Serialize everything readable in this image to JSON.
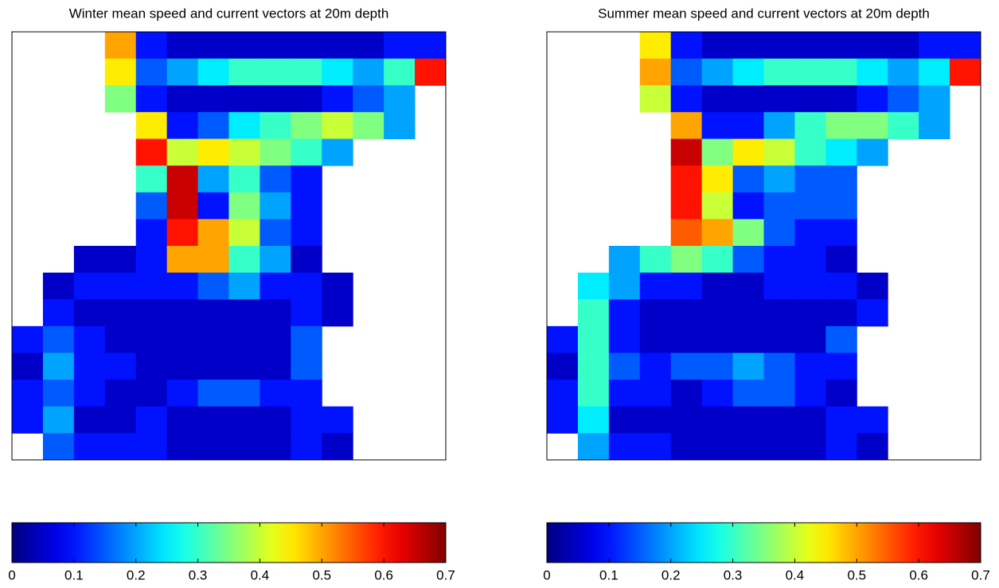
{
  "chart_data": [
    {
      "type": "heatmap",
      "title": "Winter mean speed and current vectors at 20m depth",
      "cmap": "jet",
      "clim": [
        0,
        0.7
      ],
      "colorbar_ticks": [
        0,
        0.1,
        0.2,
        0.3,
        0.4,
        0.5,
        0.6,
        0.7
      ],
      "values": [
        [
          null,
          null,
          null,
          0.5,
          0.1,
          0.05,
          0.05,
          0.05,
          0.05,
          0.05,
          0.05,
          0.05,
          0.1,
          0.1
        ],
        [
          null,
          null,
          null,
          0.45,
          0.15,
          0.2,
          0.25,
          0.3,
          0.3,
          0.3,
          0.25,
          0.2,
          0.3,
          0.6
        ],
        [
          null,
          null,
          null,
          0.35,
          0.1,
          0.05,
          0.05,
          0.05,
          0.05,
          0.05,
          0.1,
          0.15,
          0.2,
          null
        ],
        [
          null,
          null,
          null,
          null,
          0.45,
          0.1,
          0.15,
          0.25,
          0.3,
          0.35,
          0.4,
          0.35,
          0.2,
          null
        ],
        [
          null,
          null,
          null,
          null,
          0.6,
          0.4,
          0.45,
          0.4,
          0.35,
          0.3,
          0.2,
          null,
          null,
          null
        ],
        [
          null,
          null,
          null,
          null,
          0.3,
          0.65,
          0.2,
          0.3,
          0.15,
          0.1,
          null,
          null,
          null,
          null
        ],
        [
          null,
          null,
          null,
          null,
          0.15,
          0.65,
          0.1,
          0.35,
          0.2,
          0.1,
          null,
          null,
          null,
          null
        ],
        [
          null,
          null,
          null,
          null,
          0.1,
          0.6,
          0.5,
          0.4,
          0.15,
          0.1,
          null,
          null,
          null,
          null
        ],
        [
          null,
          null,
          0.05,
          0.05,
          0.1,
          0.5,
          0.5,
          0.3,
          0.2,
          0.05,
          null,
          null,
          null,
          null
        ],
        [
          null,
          0.05,
          0.1,
          0.1,
          0.1,
          0.1,
          0.15,
          0.2,
          0.1,
          0.1,
          0.05,
          null,
          null,
          null
        ],
        [
          null,
          0.1,
          0.05,
          0.05,
          0.05,
          0.05,
          0.05,
          0.05,
          0.05,
          0.1,
          0.05,
          null,
          null,
          null
        ],
        [
          0.1,
          0.15,
          0.1,
          0.05,
          0.05,
          0.05,
          0.05,
          0.05,
          0.05,
          0.15,
          null,
          null,
          null,
          null
        ],
        [
          0.05,
          0.2,
          0.1,
          0.1,
          0.05,
          0.05,
          0.05,
          0.05,
          0.05,
          0.15,
          null,
          null,
          null,
          null
        ],
        [
          0.1,
          0.15,
          0.1,
          0.05,
          0.05,
          0.1,
          0.15,
          0.15,
          0.1,
          0.1,
          null,
          null,
          null,
          null
        ],
        [
          0.1,
          0.2,
          0.05,
          0.05,
          0.1,
          0.05,
          0.05,
          0.05,
          0.05,
          0.1,
          0.1,
          null,
          null,
          null
        ],
        [
          null,
          0.15,
          0.1,
          0.1,
          0.1,
          0.05,
          0.05,
          0.05,
          0.05,
          0.1,
          0.05,
          null,
          null,
          null
        ]
      ]
    },
    {
      "type": "heatmap",
      "title": "Summer mean speed and current vectors at 20m depth",
      "cmap": "jet",
      "clim": [
        0,
        0.7
      ],
      "colorbar_ticks": [
        0,
        0.1,
        0.2,
        0.3,
        0.4,
        0.5,
        0.6,
        0.7
      ],
      "values": [
        [
          null,
          null,
          null,
          0.45,
          0.1,
          0.05,
          0.05,
          0.05,
          0.05,
          0.05,
          0.05,
          0.05,
          0.1,
          0.1
        ],
        [
          null,
          null,
          null,
          0.5,
          0.15,
          0.2,
          0.25,
          0.3,
          0.3,
          0.3,
          0.25,
          0.2,
          0.25,
          0.6
        ],
        [
          null,
          null,
          null,
          0.4,
          0.1,
          0.05,
          0.05,
          0.05,
          0.05,
          0.05,
          0.1,
          0.15,
          0.2,
          null
        ],
        [
          null,
          null,
          null,
          null,
          0.5,
          0.1,
          0.1,
          0.2,
          0.3,
          0.35,
          0.35,
          0.3,
          0.2,
          null
        ],
        [
          null,
          null,
          null,
          null,
          0.65,
          0.35,
          0.45,
          0.4,
          0.3,
          0.25,
          0.2,
          null,
          null,
          null
        ],
        [
          null,
          null,
          null,
          null,
          0.6,
          0.45,
          0.15,
          0.2,
          0.15,
          0.15,
          null,
          null,
          null,
          null
        ],
        [
          null,
          null,
          null,
          null,
          0.6,
          0.4,
          0.1,
          0.15,
          0.15,
          0.15,
          null,
          null,
          null,
          null
        ],
        [
          null,
          null,
          null,
          null,
          0.55,
          0.5,
          0.35,
          0.15,
          0.1,
          0.1,
          null,
          null,
          null,
          null
        ],
        [
          null,
          null,
          0.2,
          0.3,
          0.35,
          0.3,
          0.15,
          0.1,
          0.1,
          0.05,
          null,
          null,
          null,
          null
        ],
        [
          null,
          0.25,
          0.2,
          0.1,
          0.1,
          0.05,
          0.05,
          0.1,
          0.1,
          0.1,
          0.05,
          null,
          null,
          null
        ],
        [
          null,
          0.3,
          0.1,
          0.05,
          0.05,
          0.05,
          0.05,
          0.05,
          0.05,
          0.05,
          0.1,
          null,
          null,
          null
        ],
        [
          0.1,
          0.3,
          0.1,
          0.05,
          0.05,
          0.05,
          0.05,
          0.05,
          0.05,
          0.15,
          null,
          null,
          null,
          null
        ],
        [
          0.05,
          0.3,
          0.15,
          0.1,
          0.15,
          0.15,
          0.2,
          0.15,
          0.1,
          0.1,
          null,
          null,
          null,
          null
        ],
        [
          0.1,
          0.3,
          0.1,
          0.1,
          0.05,
          0.1,
          0.15,
          0.15,
          0.1,
          0.05,
          null,
          null,
          null,
          null
        ],
        [
          0.1,
          0.25,
          0.05,
          0.05,
          0.05,
          0.05,
          0.05,
          0.05,
          0.05,
          0.1,
          0.1,
          null,
          null,
          null
        ],
        [
          null,
          0.2,
          0.1,
          0.1,
          0.05,
          0.05,
          0.05,
          0.05,
          0.05,
          0.1,
          0.05,
          null,
          null,
          null
        ]
      ]
    }
  ]
}
